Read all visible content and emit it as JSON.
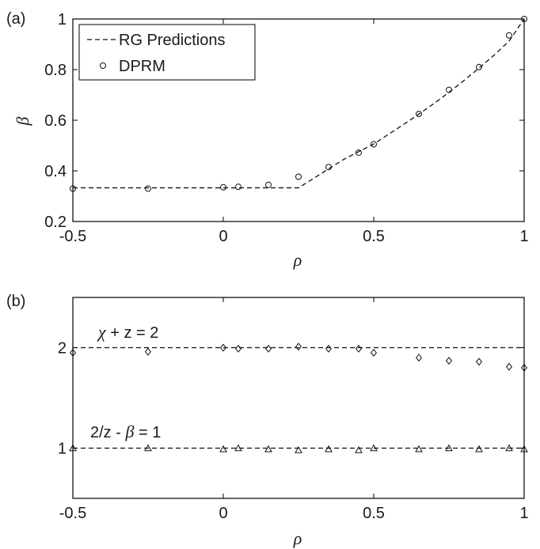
{
  "chart_data": [
    {
      "panel_label": "(a)",
      "type": "line",
      "xlabel": "ρ",
      "ylabel": "β",
      "xlim": [
        -0.5,
        1
      ],
      "ylim": [
        0.2,
        1
      ],
      "xticks": [
        -0.5,
        0,
        0.5,
        1
      ],
      "xtick_labels": [
        "-0.5",
        "0",
        "0.5",
        "1"
      ],
      "yticks": [
        0.2,
        0.4,
        0.6,
        0.8,
        1
      ],
      "ytick_labels": [
        "0.2",
        "0.4",
        "0.6",
        "0.8",
        "1"
      ],
      "grid": false,
      "legend_position": "top-left",
      "series": [
        {
          "name": "RG Predictions",
          "style": "dashed-line",
          "x": [
            -0.5,
            0.25,
            0.3,
            0.35,
            0.4,
            0.45,
            0.5,
            0.55,
            0.6,
            0.65,
            0.7,
            0.75,
            0.8,
            0.85,
            0.9,
            0.95,
            1
          ],
          "y": [
            0.333,
            0.333,
            0.37,
            0.408,
            0.445,
            0.476,
            0.506,
            0.545,
            0.584,
            0.624,
            0.666,
            0.71,
            0.757,
            0.806,
            0.857,
            0.913,
            1.0
          ]
        },
        {
          "name": "DPRM",
          "style": "circle-marker",
          "x": [
            -0.5,
            -0.25,
            0,
            0.05,
            0.15,
            0.25,
            0.35,
            0.45,
            0.5,
            0.65,
            0.75,
            0.85,
            0.95,
            1
          ],
          "y": [
            0.33,
            0.33,
            0.335,
            0.337,
            0.345,
            0.377,
            0.415,
            0.472,
            0.505,
            0.625,
            0.72,
            0.81,
            0.935,
            1.0
          ]
        }
      ]
    },
    {
      "panel_label": "(b)",
      "type": "scatter",
      "xlabel": "ρ",
      "ylabel": "",
      "xlim": [
        -0.5,
        1
      ],
      "ylim": [
        0.5,
        2.5
      ],
      "xticks": [
        -0.5,
        0,
        0.5,
        1
      ],
      "xtick_labels": [
        "-0.5",
        "0",
        "0.5",
        "1"
      ],
      "yticks": [
        1,
        2
      ],
      "ytick_labels": [
        "1",
        "2"
      ],
      "grid": false,
      "reference_lines": [
        {
          "y": 2,
          "label_prefix": "χ",
          "label_rest": " + z = 2"
        },
        {
          "y": 1,
          "label_prefix": "2/z - ",
          "label_symbol": "β",
          "label_rest": " = 1"
        }
      ],
      "series": [
        {
          "marker": "diamond",
          "x": [
            -0.5,
            -0.25,
            0,
            0.05,
            0.15,
            0.25,
            0.35,
            0.45,
            0.5,
            0.65,
            0.75,
            0.85,
            0.95,
            1
          ],
          "y": [
            1.95,
            1.96,
            2.0,
            1.99,
            1.99,
            2.01,
            1.99,
            1.99,
            1.95,
            1.9,
            1.87,
            1.86,
            1.81,
            1.8
          ]
        },
        {
          "marker": "triangle",
          "x": [
            -0.5,
            -0.25,
            0,
            0.05,
            0.15,
            0.25,
            0.35,
            0.45,
            0.5,
            0.65,
            0.75,
            0.85,
            0.95,
            1
          ],
          "y": [
            1.0,
            1.0,
            0.99,
            1.0,
            0.99,
            0.98,
            0.99,
            0.98,
            1.0,
            0.99,
            1.0,
            0.99,
            1.0,
            0.99
          ]
        }
      ]
    }
  ]
}
